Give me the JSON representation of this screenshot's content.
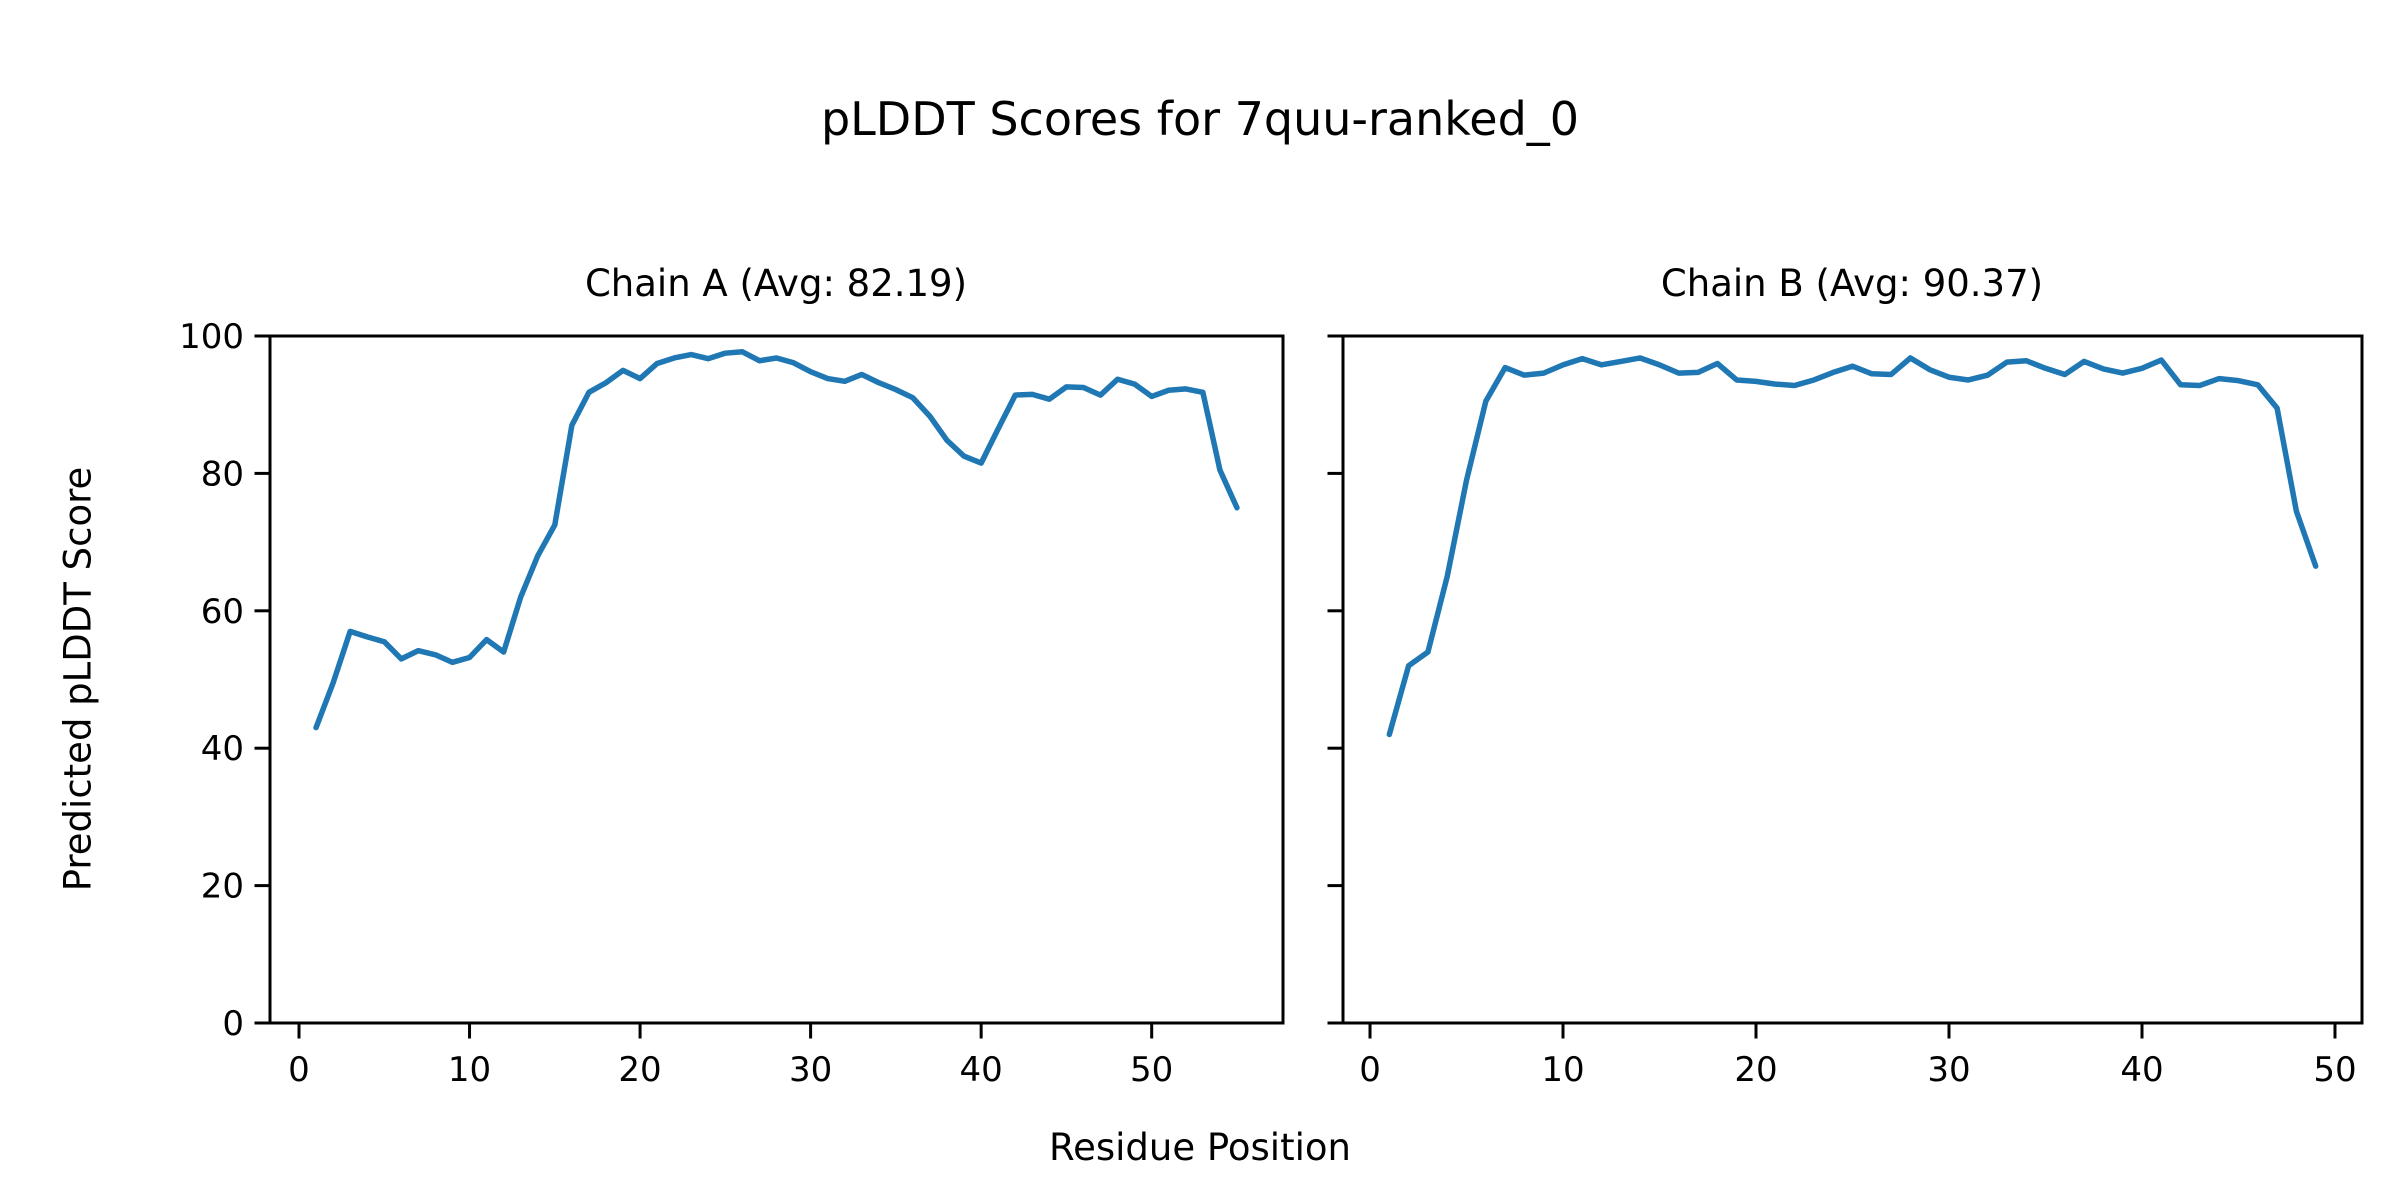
{
  "figure": {
    "title": "pLDDT Scores for 7quu-ranked_0",
    "xlabel": "Residue Position",
    "ylabel": "Predicted pLDDT Score",
    "background_color": "#ffffff",
    "line_color": "#1f77b4",
    "axis_color": "#000000"
  },
  "chart_data": [
    {
      "type": "line",
      "title": "Chain A (Avg: 82.19)",
      "chain": "A",
      "average_plddt": 82.19,
      "x_start": 1,
      "x_step": 1,
      "values": [
        43,
        49.5,
        57,
        56.2,
        55.5,
        53,
        54.2,
        53.6,
        52.5,
        53.2,
        55.8,
        54,
        62,
        68,
        72.5,
        87,
        91.8,
        93.2,
        95,
        93.8,
        96,
        96.8,
        97.3,
        96.7,
        97.5,
        97.7,
        96.4,
        96.8,
        96.1,
        94.8,
        93.8,
        93.4,
        94.4,
        93.2,
        92.2,
        91,
        88.3,
        84.8,
        82.5,
        81.5,
        86.5,
        91.4,
        91.5,
        90.8,
        92.6,
        92.5,
        91.4,
        93.7,
        93,
        91.2,
        92.1,
        92.3,
        91.8,
        80.5,
        75
      ],
      "xticks": [
        0,
        10,
        20,
        30,
        40,
        50
      ],
      "yticks": [
        0,
        20,
        40,
        60,
        80,
        100
      ],
      "xlim": [
        -1.7,
        57.7
      ],
      "ylim": [
        0,
        100
      ],
      "grid": false,
      "legend": false,
      "show_yticklabels": true
    },
    {
      "type": "line",
      "title": "Chain B (Avg: 90.37)",
      "chain": "B",
      "average_plddt": 90.37,
      "x_start": 1,
      "x_step": 1,
      "values": [
        42,
        52,
        54,
        65,
        79,
        90.5,
        95.4,
        94.3,
        94.6,
        95.8,
        96.7,
        95.8,
        96.3,
        96.8,
        95.8,
        94.6,
        94.7,
        96.0,
        93.6,
        93.4,
        93.0,
        92.8,
        93.6,
        94.7,
        95.6,
        94.5,
        94.4,
        96.8,
        95.1,
        94.0,
        93.6,
        94.3,
        96.2,
        96.4,
        95.3,
        94.4,
        96.3,
        95.2,
        94.6,
        95.3,
        96.5,
        92.9,
        92.8,
        93.8,
        93.5,
        92.9,
        89.5,
        74.5,
        66.5
      ],
      "xticks": [
        0,
        10,
        20,
        30,
        40,
        50
      ],
      "yticks": [
        0,
        20,
        40,
        60,
        80,
        100
      ],
      "xlim": [
        -1.4,
        51.4
      ],
      "ylim": [
        0,
        100
      ],
      "grid": false,
      "legend": false,
      "show_yticklabels": false
    }
  ]
}
